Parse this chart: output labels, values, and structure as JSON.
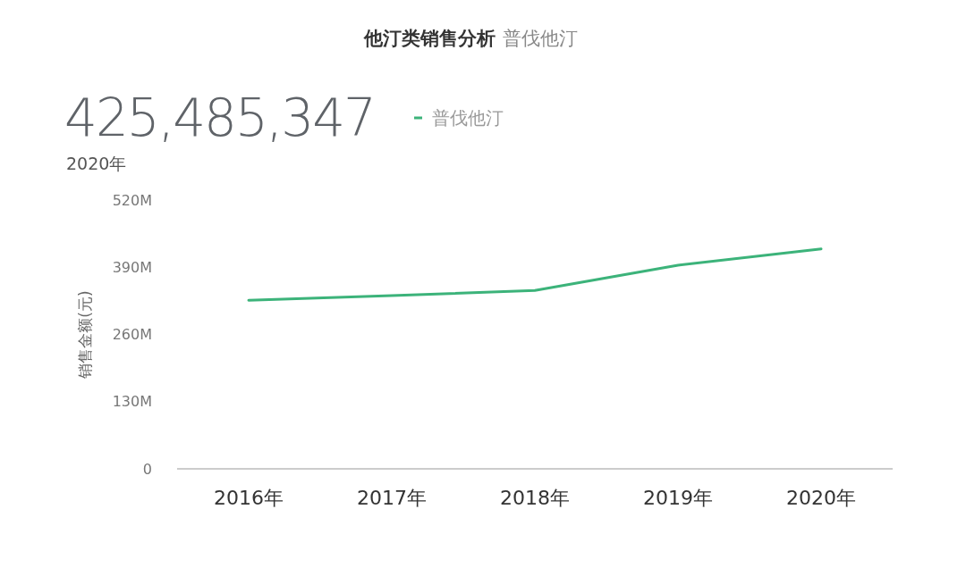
{
  "chart_data": {
    "type": "line",
    "title": "他汀类销售分析",
    "subtitle": "普伐他汀",
    "ylabel": "销售金额(元)",
    "annotations": [
      "425,485,347",
      "2020年"
    ],
    "categories": [
      "2016年",
      "2017年",
      "2018年",
      "2019年",
      "2020年"
    ],
    "series": [
      {
        "name": "普伐他汀",
        "color": "#3cb37a",
        "values": [
          326000000,
          335000000,
          345000000,
          394000000,
          425485347
        ]
      }
    ],
    "ylim": [
      0,
      520000000
    ],
    "yticks": [
      {
        "value": 0,
        "label": "0"
      },
      {
        "value": 130000000,
        "label": "130M"
      },
      {
        "value": 260000000,
        "label": "260M"
      },
      {
        "value": 390000000,
        "label": "390M"
      },
      {
        "value": 520000000,
        "label": "520M"
      }
    ],
    "grid": false,
    "legend": "top",
    "marker": "none",
    "line_style": "solid"
  }
}
